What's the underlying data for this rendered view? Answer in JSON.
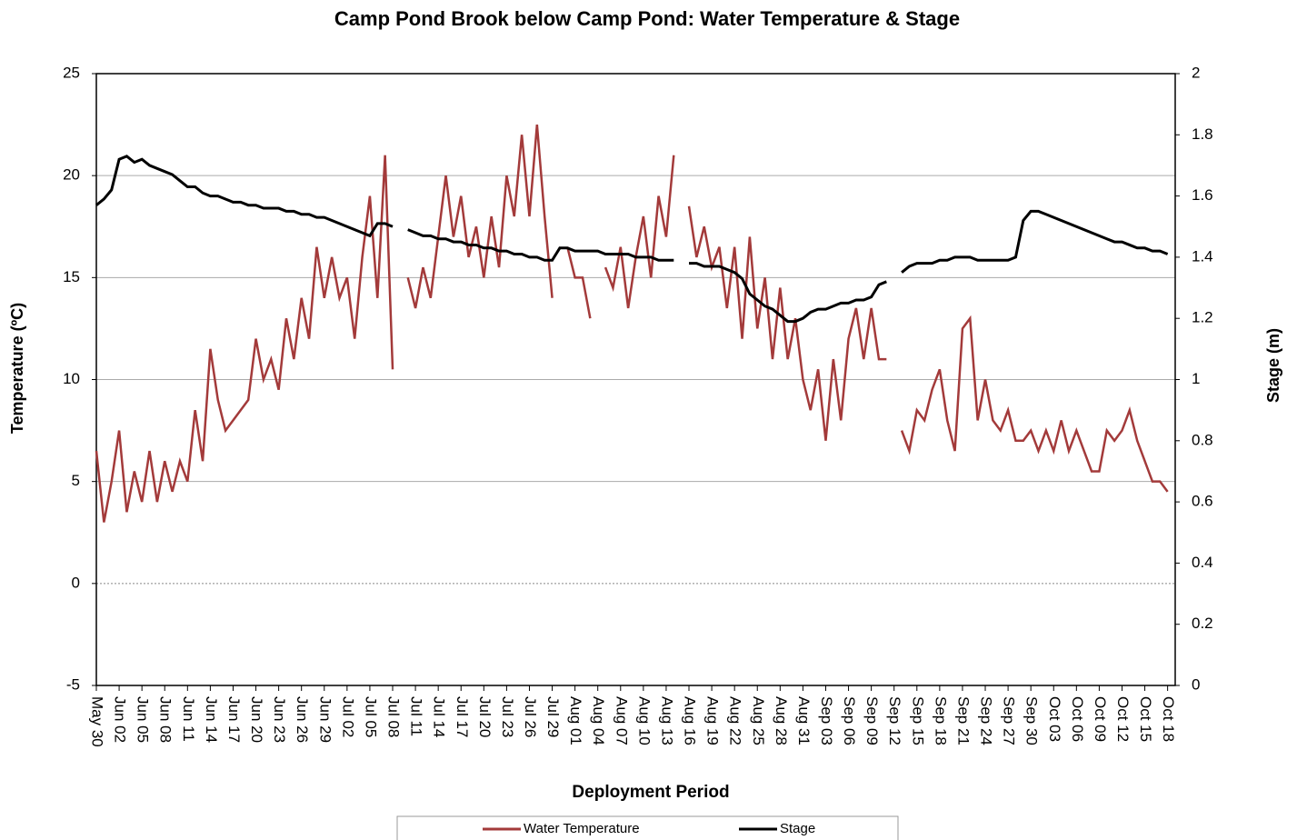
{
  "chart_data": {
    "type": "line",
    "title": "Camp Pond Brook below Camp Pond: Water Temperature & Stage",
    "x_label": "Deployment Period",
    "y_label": "Temperature (ºC)",
    "y2_label": "Stage (m)",
    "x": [
      0,
      1,
      2,
      3,
      4,
      5,
      6,
      7,
      8,
      9,
      10,
      11,
      12,
      13,
      14,
      15,
      16,
      17,
      18,
      19,
      20,
      21,
      22,
      23,
      24,
      25,
      26,
      27,
      28,
      29,
      30,
      31,
      32,
      33,
      34,
      35,
      36,
      37,
      38,
      39,
      40,
      41,
      42,
      43,
      44,
      45,
      46,
      47,
      48,
      49,
      50,
      51,
      52,
      53,
      54,
      55,
      56,
      57,
      58,
      59,
      60,
      61,
      62,
      63,
      64,
      65,
      66,
      67,
      68,
      69,
      70,
      71,
      72,
      73,
      74,
      75,
      76,
      77,
      78,
      79,
      80,
      81,
      82,
      83,
      84,
      85,
      86,
      87,
      88,
      89,
      90,
      91,
      92,
      93,
      94,
      95,
      96,
      97,
      98,
      99,
      100,
      101,
      102,
      103,
      104,
      105,
      106,
      107,
      108,
      109,
      110,
      111,
      112,
      113,
      114,
      115,
      116,
      117,
      118,
      119,
      120,
      121,
      122,
      123,
      124,
      125,
      126,
      127,
      128,
      129,
      130,
      131,
      132,
      133,
      134,
      135,
      136,
      137,
      138,
      139,
      140,
      141
    ],
    "xlim": [
      0,
      142
    ],
    "xticks": [
      {
        "value": 0,
        "label": "May 30"
      },
      {
        "value": 3,
        "label": "Jun 02"
      },
      {
        "value": 6,
        "label": "Jun 05"
      },
      {
        "value": 9,
        "label": "Jun 08"
      },
      {
        "value": 12,
        "label": "Jun 11"
      },
      {
        "value": 15,
        "label": "Jun 14"
      },
      {
        "value": 18,
        "label": "Jun 17"
      },
      {
        "value": 21,
        "label": "Jun 20"
      },
      {
        "value": 24,
        "label": "Jun 23"
      },
      {
        "value": 27,
        "label": "Jun 26"
      },
      {
        "value": 30,
        "label": "Jun 29"
      },
      {
        "value": 33,
        "label": "Jul 02"
      },
      {
        "value": 36,
        "label": "Jul 05"
      },
      {
        "value": 39,
        "label": "Jul 08"
      },
      {
        "value": 42,
        "label": "Jul 11"
      },
      {
        "value": 45,
        "label": "Jul 14"
      },
      {
        "value": 48,
        "label": "Jul 17"
      },
      {
        "value": 51,
        "label": "Jul 20"
      },
      {
        "value": 54,
        "label": "Jul 23"
      },
      {
        "value": 57,
        "label": "Jul 26"
      },
      {
        "value": 60,
        "label": "Jul 29"
      },
      {
        "value": 63,
        "label": "Aug 01"
      },
      {
        "value": 66,
        "label": "Aug 04"
      },
      {
        "value": 69,
        "label": "Aug 07"
      },
      {
        "value": 72,
        "label": "Aug 10"
      },
      {
        "value": 75,
        "label": "Aug 13"
      },
      {
        "value": 78,
        "label": "Aug 16"
      },
      {
        "value": 81,
        "label": "Aug 19"
      },
      {
        "value": 84,
        "label": "Aug 22"
      },
      {
        "value": 87,
        "label": "Aug 25"
      },
      {
        "value": 90,
        "label": "Aug 28"
      },
      {
        "value": 93,
        "label": "Aug 31"
      },
      {
        "value": 96,
        "label": "Sep 03"
      },
      {
        "value": 99,
        "label": "Sep 06"
      },
      {
        "value": 102,
        "label": "Sep 09"
      },
      {
        "value": 105,
        "label": "Sep 12"
      },
      {
        "value": 108,
        "label": "Sep 15"
      },
      {
        "value": 111,
        "label": "Sep 18"
      },
      {
        "value": 114,
        "label": "Sep 21"
      },
      {
        "value": 117,
        "label": "Sep 24"
      },
      {
        "value": 120,
        "label": "Sep 27"
      },
      {
        "value": 123,
        "label": "Sep 30"
      },
      {
        "value": 126,
        "label": "Oct 03"
      },
      {
        "value": 129,
        "label": "Oct 06"
      },
      {
        "value": 132,
        "label": "Oct 09"
      },
      {
        "value": 135,
        "label": "Oct 12"
      },
      {
        "value": 138,
        "label": "Oct 15"
      },
      {
        "value": 141,
        "label": "Oct 18"
      }
    ],
    "ylim": [
      -5,
      25
    ],
    "yticks": [
      -5,
      0,
      5,
      10,
      15,
      20,
      25
    ],
    "y2lim": [
      0,
      2
    ],
    "y2ticks": [
      0,
      0.2,
      0.4,
      0.6,
      0.8,
      1,
      1.2,
      1.4,
      1.6,
      1.8,
      2
    ],
    "grid": true,
    "series": [
      {
        "name": "Water Temperature",
        "color": "#a33a3a",
        "values": [
          6.5,
          3,
          5,
          7.5,
          3.5,
          5.5,
          4,
          6.5,
          4,
          6,
          4.5,
          6,
          5,
          8.5,
          6,
          11.5,
          9,
          7.5,
          8,
          8.5,
          9,
          12,
          10,
          11,
          9.5,
          13,
          11,
          14,
          12,
          16.5,
          14,
          16,
          14,
          15,
          12,
          16,
          19,
          14,
          21,
          10.5,
          null,
          15,
          13.5,
          15.5,
          14,
          17,
          20,
          17,
          19,
          16,
          17.5,
          15,
          18,
          15.5,
          20,
          18,
          22,
          18,
          22.5,
          18,
          14,
          null,
          16.5,
          15,
          15,
          13,
          null,
          15.5,
          14.5,
          16.5,
          13.5,
          16,
          18,
          15,
          19,
          17,
          21,
          null,
          18.5,
          16,
          17.5,
          15.5,
          16.5,
          13.5,
          16.5,
          12,
          17,
          12.5,
          15,
          11,
          14.5,
          11,
          13,
          10,
          8.5,
          10.5,
          7,
          11,
          8,
          12,
          13.5,
          11,
          13.5,
          11,
          11,
          null,
          7.5,
          6.5,
          8.5,
          8,
          9.5,
          10.5,
          8,
          6.5,
          12.5,
          13,
          8,
          10,
          8,
          7.5,
          8.5,
          7,
          7,
          7.5,
          6.5,
          7.5,
          6.5,
          8,
          6.5,
          7.5,
          6.5,
          5.5,
          5.5,
          7.5,
          7,
          7.5,
          8.5,
          7,
          6,
          5,
          5,
          4.5
        ]
      },
      {
        "name": "Stage",
        "color": "#000000",
        "axis": "y2",
        "values": [
          1.57,
          1.59,
          1.62,
          1.72,
          1.73,
          1.71,
          1.72,
          1.7,
          1.69,
          1.68,
          1.67,
          1.65,
          1.63,
          1.63,
          1.61,
          1.6,
          1.6,
          1.59,
          1.58,
          1.58,
          1.57,
          1.57,
          1.56,
          1.56,
          1.56,
          1.55,
          1.55,
          1.54,
          1.54,
          1.53,
          1.53,
          1.52,
          1.51,
          1.5,
          1.49,
          1.48,
          1.47,
          1.51,
          1.51,
          1.5,
          null,
          1.49,
          1.48,
          1.47,
          1.47,
          1.46,
          1.46,
          1.45,
          1.45,
          1.44,
          1.44,
          1.43,
          1.43,
          1.42,
          1.42,
          1.41,
          1.41,
          1.4,
          1.4,
          1.39,
          1.39,
          1.43,
          1.43,
          1.42,
          1.42,
          1.42,
          1.42,
          1.41,
          1.41,
          1.41,
          1.41,
          1.4,
          1.4,
          1.4,
          1.39,
          1.39,
          1.39,
          null,
          1.38,
          1.38,
          1.37,
          1.37,
          1.37,
          1.36,
          1.35,
          1.33,
          1.28,
          1.26,
          1.24,
          1.23,
          1.21,
          1.19,
          1.19,
          1.2,
          1.22,
          1.23,
          1.23,
          1.24,
          1.25,
          1.25,
          1.26,
          1.26,
          1.27,
          1.31,
          1.32,
          null,
          1.35,
          1.37,
          1.38,
          1.38,
          1.38,
          1.39,
          1.39,
          1.4,
          1.4,
          1.4,
          1.39,
          1.39,
          1.39,
          1.39,
          1.39,
          1.4,
          1.52,
          1.55,
          1.55,
          1.54,
          1.53,
          1.52,
          1.51,
          1.5,
          1.49,
          1.48,
          1.47,
          1.46,
          1.45,
          1.45,
          1.44,
          1.43,
          1.43,
          1.42,
          1.42,
          1.41
        ]
      }
    ]
  }
}
